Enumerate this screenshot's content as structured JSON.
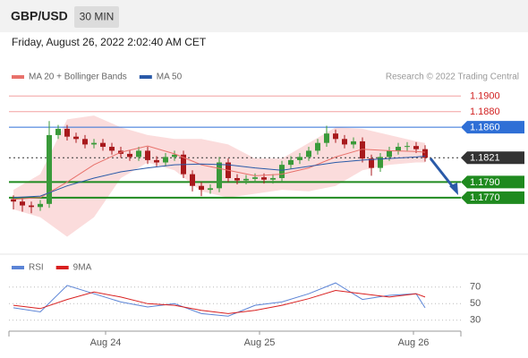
{
  "header": {
    "symbol": "GBP/USD",
    "interval": "30 MIN",
    "date": "Friday, August 26, 2022 2:02:40 AM CET",
    "source": "Research © 2022 Trading Central"
  },
  "chart_data": [
    {
      "type": "candlestick",
      "xlim": [
        0,
        50.5
      ],
      "ylim": [
        1.17,
        1.1914
      ],
      "up_color": "#3a9a3a",
      "down_color": "#a8191c",
      "candles": {
        "x": [
          0.5,
          1.5,
          2.5,
          3.5,
          4.5,
          5.5,
          6.5,
          7.5,
          8.5,
          9.5,
          10.5,
          11.5,
          12.5,
          13.5,
          14.5,
          15.5,
          16.5,
          17.5,
          18.5,
          19.5,
          20.5,
          21.5,
          22.5,
          23.5,
          24.5,
          25.5,
          26.5,
          27.5,
          28.5,
          29.5,
          30.5,
          31.5,
          32.5,
          33.5,
          34.5,
          35.5,
          36.5,
          37.5,
          38.5,
          39.5,
          40.5,
          41.5,
          42.5,
          43.5,
          44.5,
          45.5,
          46.5
        ],
        "open": [
          1.1768,
          1.1765,
          1.176,
          1.1758,
          1.1762,
          1.185,
          1.1858,
          1.1848,
          1.1845,
          1.1838,
          1.184,
          1.1835,
          1.183,
          1.1826,
          1.1822,
          1.183,
          1.1818,
          1.1815,
          1.1822,
          1.1825,
          1.18,
          1.1785,
          1.178,
          1.1782,
          1.1815,
          1.1795,
          1.1792,
          1.1794,
          1.1796,
          1.1793,
          1.1795,
          1.1812,
          1.1818,
          1.1822,
          1.183,
          1.184,
          1.1852,
          1.1845,
          1.1838,
          1.1842,
          1.182,
          1.1808,
          1.1822,
          1.183,
          1.1835,
          1.1836,
          1.1832
        ],
        "high": [
          1.1773,
          1.177,
          1.1765,
          1.1767,
          1.1868,
          1.1863,
          1.1863,
          1.1853,
          1.185,
          1.1845,
          1.1845,
          1.184,
          1.1835,
          1.1831,
          1.1835,
          1.1835,
          1.1823,
          1.1827,
          1.183,
          1.183,
          1.1805,
          1.179,
          1.1787,
          1.1822,
          1.182,
          1.18,
          1.1799,
          1.1801,
          1.1801,
          1.18,
          1.1817,
          1.1823,
          1.1827,
          1.1835,
          1.1845,
          1.1862,
          1.1857,
          1.185,
          1.1847,
          1.1847,
          1.1825,
          1.1827,
          1.1835,
          1.184,
          1.1841,
          1.1841,
          1.1837
        ],
        "low": [
          1.1755,
          1.1752,
          1.175,
          1.1753,
          1.1757,
          1.1845,
          1.1843,
          1.184,
          1.1833,
          1.1833,
          1.183,
          1.1825,
          1.1821,
          1.1817,
          1.1817,
          1.1813,
          1.181,
          1.181,
          1.1817,
          1.1795,
          1.1778,
          1.1772,
          1.1775,
          1.1777,
          1.179,
          1.1787,
          1.1787,
          1.1789,
          1.1788,
          1.1788,
          1.179,
          1.1807,
          1.1813,
          1.1817,
          1.1825,
          1.1835,
          1.184,
          1.1833,
          1.1833,
          1.1815,
          1.1798,
          1.1803,
          1.1817,
          1.1825,
          1.183,
          1.1827,
          1.1816
        ],
        "close": [
          1.1765,
          1.176,
          1.1758,
          1.1762,
          1.185,
          1.1858,
          1.1848,
          1.1845,
          1.1838,
          1.184,
          1.1835,
          1.183,
          1.1826,
          1.1822,
          1.183,
          1.1818,
          1.1815,
          1.1822,
          1.1825,
          1.18,
          1.1785,
          1.178,
          1.1782,
          1.1815,
          1.1795,
          1.1792,
          1.1794,
          1.1796,
          1.1793,
          1.1795,
          1.1812,
          1.1818,
          1.1822,
          1.183,
          1.184,
          1.1852,
          1.1845,
          1.1838,
          1.1842,
          1.182,
          1.1808,
          1.1822,
          1.183,
          1.1835,
          1.1836,
          1.1832,
          1.1821
        ]
      },
      "series": [
        {
          "name": "MA 20 + Bollinger Bands",
          "color": "#e8716b",
          "band_color": "#fbdcdc",
          "x": [
            0.5,
            3.5,
            6.5,
            9.5,
            12.5,
            15.5,
            18.5,
            21.5,
            24.5,
            27.5,
            30.5,
            33.5,
            36.5,
            39.5,
            42.5,
            45.5,
            46.5
          ],
          "values": [
            1.1768,
            1.177,
            1.179,
            1.1812,
            1.1828,
            1.1836,
            1.1826,
            1.1812,
            1.1805,
            1.1798,
            1.18,
            1.1808,
            1.1822,
            1.1832,
            1.183,
            1.1829,
            1.1828
          ],
          "upper": [
            1.178,
            1.18,
            1.187,
            1.1875,
            1.186,
            1.185,
            1.1845,
            1.1845,
            1.1838,
            1.182,
            1.182,
            1.184,
            1.186,
            1.1858,
            1.185,
            1.1842,
            1.184
          ],
          "lower": [
            1.1755,
            1.1745,
            1.172,
            1.1745,
            1.1795,
            1.1815,
            1.1805,
            1.1778,
            1.177,
            1.1775,
            1.178,
            1.1778,
            1.1785,
            1.1805,
            1.1812,
            1.1815,
            1.1815
          ]
        },
        {
          "name": "MA 50",
          "color": "#2a5aa8",
          "x": [
            0.5,
            3.5,
            6.5,
            9.5,
            12.5,
            15.5,
            18.5,
            21.5,
            24.5,
            27.5,
            30.5,
            33.5,
            36.5,
            39.5,
            42.5,
            45.5,
            46.5
          ],
          "values": [
            1.177,
            1.1772,
            1.1785,
            1.1795,
            1.1803,
            1.1808,
            1.1812,
            1.1813,
            1.1812,
            1.1808,
            1.1805,
            1.181,
            1.1815,
            1.1818,
            1.182,
            1.1822,
            1.1823
          ]
        }
      ],
      "levels": [
        {
          "value": 1.19,
          "label": "1.1900",
          "color": "#f3a0a0",
          "text_color": "#d11f1f",
          "boxed": false
        },
        {
          "value": 1.188,
          "label": "1.1880",
          "color": "#f3a0a0",
          "text_color": "#d11f1f",
          "boxed": false
        },
        {
          "value": 1.186,
          "label": "1.1860",
          "color": "#2f6fd6",
          "text_color": "#ffffff",
          "boxed": true
        },
        {
          "value": 1.1821,
          "label": "1.1821",
          "color": "#333333",
          "text_color": "#ffffff",
          "boxed": true
        },
        {
          "value": 1.179,
          "label": "1.1790",
          "color": "#1f8a1f",
          "text_color": "#ffffff",
          "boxed": true
        },
        {
          "value": 1.177,
          "label": "1.1770",
          "color": "#1f8a1f",
          "text_color": "#ffffff",
          "boxed": true
        }
      ]
    },
    {
      "type": "line",
      "xlim": [
        0,
        50.5
      ],
      "ylim": [
        19,
        87
      ],
      "yticks": [
        30,
        50,
        70
      ],
      "xticks": [
        {
          "value": 10.8,
          "label": "Aug 24"
        },
        {
          "value": 28,
          "label": "Aug 25"
        },
        {
          "value": 45.2,
          "label": "Aug 26"
        }
      ],
      "series": [
        {
          "name": "RSI",
          "color": "#5b84d6",
          "x": [
            0.5,
            3.5,
            6.5,
            9.5,
            12.5,
            15.5,
            18.5,
            21.5,
            24.5,
            27.5,
            30.5,
            33.5,
            36.5,
            39.5,
            42.5,
            45.5,
            46.5
          ],
          "values": [
            45,
            40,
            72,
            62,
            52,
            46,
            50,
            38,
            35,
            48,
            52,
            62,
            75,
            55,
            60,
            62,
            45
          ]
        },
        {
          "name": "9MA",
          "color": "#d92020",
          "x": [
            0.5,
            3.5,
            6.5,
            9.5,
            12.5,
            15.5,
            18.5,
            21.5,
            24.5,
            27.5,
            30.5,
            33.5,
            36.5,
            39.5,
            42.5,
            45.5,
            46.5
          ],
          "values": [
            48,
            44,
            55,
            64,
            58,
            50,
            48,
            42,
            38,
            42,
            48,
            56,
            66,
            62,
            58,
            62,
            58
          ]
        }
      ]
    }
  ]
}
